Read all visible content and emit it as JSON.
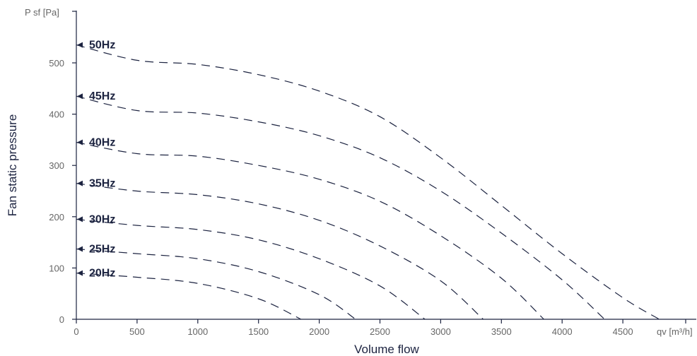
{
  "chart_data": {
    "type": "line",
    "title": "",
    "xlabel": "Volume flow",
    "ylabel": "Fan static pressure",
    "x_unit_label": "qv [m³/h]",
    "y_unit_label": "P sf [Pa]",
    "xlim": [
      0,
      5000
    ],
    "ylim": [
      0,
      600
    ],
    "x_ticks": [
      0,
      500,
      1000,
      1500,
      2000,
      2500,
      3000,
      3500,
      4000,
      4500
    ],
    "y_ticks": [
      0,
      100,
      200,
      300,
      400,
      500
    ],
    "grid": false,
    "legend": "none",
    "line_color": "#1c2340",
    "series": [
      {
        "name": "50Hz",
        "x": [
          0,
          500,
          1000,
          1500,
          2000,
          2500,
          3000,
          3500,
          4000,
          4500,
          4800
        ],
        "y": [
          535,
          505,
          497,
          477,
          445,
          395,
          315,
          222,
          128,
          42,
          0
        ]
      },
      {
        "name": "45Hz",
        "x": [
          0,
          500,
          1000,
          1500,
          2000,
          2500,
          3000,
          3500,
          4000,
          4350
        ],
        "y": [
          435,
          407,
          402,
          385,
          358,
          315,
          250,
          168,
          77,
          0
        ]
      },
      {
        "name": "40Hz",
        "x": [
          0,
          500,
          1000,
          1500,
          2000,
          2500,
          3000,
          3500,
          3850
        ],
        "y": [
          345,
          323,
          318,
          300,
          273,
          230,
          163,
          80,
          0
        ]
      },
      {
        "name": "35Hz",
        "x": [
          0,
          500,
          1000,
          1500,
          2000,
          2500,
          3000,
          3350
        ],
        "y": [
          265,
          250,
          243,
          225,
          193,
          143,
          75,
          0
        ]
      },
      {
        "name": "30Hz",
        "x": [
          0,
          500,
          1000,
          1500,
          2000,
          2500,
          2870
        ],
        "y": [
          195,
          183,
          175,
          155,
          118,
          65,
          0
        ]
      },
      {
        "name": "25Hz",
        "x": [
          0,
          500,
          1000,
          1500,
          2000,
          2300
        ],
        "y": [
          137,
          128,
          118,
          93,
          48,
          0
        ]
      },
      {
        "name": "20Hz",
        "x": [
          0,
          500,
          1000,
          1500,
          1850
        ],
        "y": [
          90,
          82,
          70,
          40,
          0
        ]
      }
    ]
  }
}
